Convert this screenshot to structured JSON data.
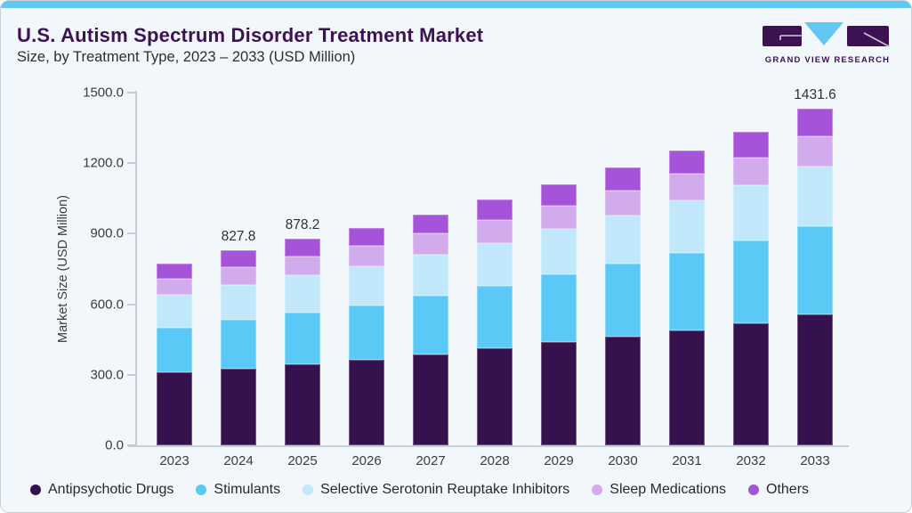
{
  "logo": {
    "text": "GRAND VIEW RESEARCH"
  },
  "colors": {
    "accent_strip": "#5ec9f2",
    "card_background": "#f1f7fb",
    "card_border": "#c9d1d8",
    "title_text": "#3d1253",
    "subtitle_text": "#2e2e33",
    "axis_line": "#c6cbd1",
    "axis_text": "#3a3b40",
    "legend_text": "#27282e",
    "logo_purple": "#3d1253",
    "logo_blue": "#62c8f1"
  },
  "chart_data": {
    "type": "bar",
    "stacked": true,
    "title": "U.S. Autism Spectrum Disorder Treatment Market",
    "subtitle": "Size, by Treatment Type, 2023 – 2033 (USD Million)",
    "ylabel": "Market Size (USD Million)",
    "xlabel": "",
    "ylim": [
      0,
      1500
    ],
    "grid": false,
    "legend_position": "bottom",
    "yticks": [
      {
        "value": 1500,
        "label": "1500.0"
      },
      {
        "value": 1200,
        "label": "1200.0"
      },
      {
        "value": 900,
        "label": "900.0"
      },
      {
        "value": 600,
        "label": "600.0"
      },
      {
        "value": 300,
        "label": "300.0"
      },
      {
        "value": 0,
        "label": "0.0"
      }
    ],
    "categories": [
      "2023",
      "2024",
      "2025",
      "2026",
      "2027",
      "2028",
      "2029",
      "2030",
      "2031",
      "2032",
      "2033"
    ],
    "series": [
      {
        "name": "Antipsychotic Drugs",
        "color": "#35124d",
        "values": [
          310,
          325,
          343,
          362,
          388,
          414,
          440,
          463,
          490,
          520,
          556
        ]
      },
      {
        "name": "Stimulants",
        "color": "#5bc9f5",
        "values": [
          190,
          208,
          221,
          234,
          249,
          265,
          287,
          308,
          328,
          352,
          377
        ]
      },
      {
        "name": "Selective Serotonin Reuptake Inhibitors",
        "color": "#c0e8fa",
        "values": [
          139,
          150,
          159,
          166,
          173,
          181,
          192,
          206,
          222,
          233,
          253.2
        ]
      },
      {
        "name": "Sleep Medications",
        "color": "#d2abec",
        "values": [
          70,
          76,
          81.5,
          86,
          92,
          97,
          100,
          108,
          114,
          120,
          128
        ]
      },
      {
        "name": "Others",
        "color": "#a553d8",
        "values": [
          62,
          68.8,
          73.7,
          77,
          80,
          88,
          92,
          95,
          101,
          110,
          117.4
        ]
      }
    ],
    "bar_labels": {
      "2024": "827.8",
      "2025": "878.2",
      "2033": "1431.6"
    },
    "labeled_totals": {
      "2024": 827.8,
      "2025": 878.2,
      "2033": 1431.6
    }
  }
}
